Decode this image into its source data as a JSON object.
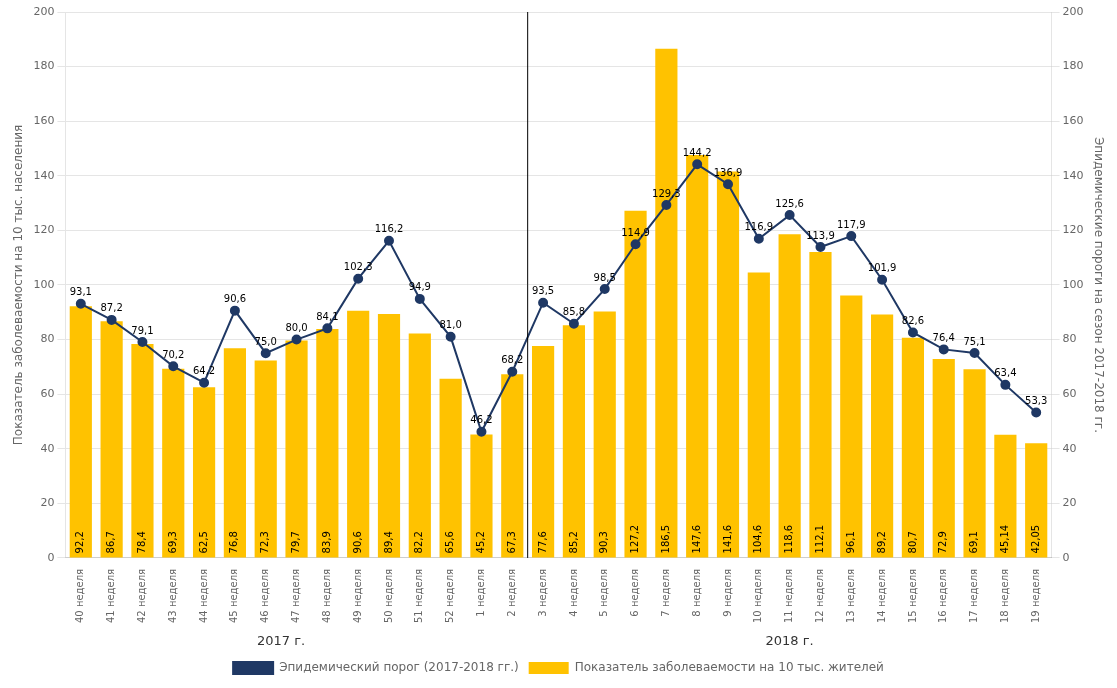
{
  "chart_data": {
    "type": "bar",
    "categories": [
      "40 неделя",
      "41 неделя",
      "42 неделя",
      "43 неделя",
      "44 неделя",
      "45 неделя",
      "46 неделя",
      "47 неделя",
      "48 неделя",
      "49 неделя",
      "50 неделя",
      "51 неделя",
      "52 неделя",
      "1 неделя",
      "2 неделя",
      "3 неделя",
      "4 неделя",
      "5 неделя",
      "6 неделя",
      "7 неделя",
      "8 неделя",
      "9 неделя",
      "10 неделя",
      "11 неделя",
      "12 неделя",
      "13 неделя",
      "14 неделя",
      "15 неделя",
      "16 неделя",
      "17 неделя",
      "18 неделя",
      "19 неделя"
    ],
    "series": [
      {
        "name": "Показатель заболеваемости на 10 тыс. жителей",
        "type": "bar",
        "color": "#FFC200",
        "values": [
          92.2,
          86.7,
          78.4,
          69.3,
          62.5,
          76.8,
          72.3,
          79.7,
          83.9,
          90.6,
          89.4,
          82.2,
          65.6,
          45.2,
          67.3,
          77.6,
          85.2,
          90.3,
          127.2,
          186.5,
          147.6,
          141.6,
          104.6,
          118.6,
          112.1,
          96.1,
          89.2,
          80.7,
          72.9,
          69.1,
          45.14,
          42.05
        ],
        "value_labels": [
          "92,2",
          "86,7",
          "78,4",
          "69,3",
          "62,5",
          "76,8",
          "72,3",
          "79,7",
          "83,9",
          "90,6",
          "89,4",
          "82,2",
          "65,6",
          "45,2",
          "67,3",
          "77,6",
          "85,2",
          "90,3",
          "127,2",
          "186,5",
          "147,6",
          "141,6",
          "104,6",
          "118,6",
          "112,1",
          "96,1",
          "89,2",
          "80,7",
          "72,9",
          "69,1",
          "45,14",
          "42,05"
        ]
      },
      {
        "name": "Эпидемический порог (2017-2018 гг.)",
        "type": "line",
        "color": "#1F3864",
        "marker": "circle",
        "axis": "y2",
        "values": [
          93.1,
          87.2,
          79.1,
          70.2,
          64.2,
          90.6,
          75.0,
          80.0,
          84.1,
          102.3,
          116.2,
          94.9,
          81.0,
          46.2,
          68.2,
          93.5,
          85.8,
          98.5,
          114.9,
          129.3,
          144.2,
          136.9,
          116.9,
          125.6,
          113.9,
          117.9,
          101.9,
          82.6,
          76.4,
          75.1,
          63.4,
          53.3
        ],
        "value_labels": [
          "93,1",
          "87,2",
          "79,1",
          "70,2",
          "64,2",
          "90,6",
          "75,0",
          "80,0",
          "84,1",
          "102,3",
          "116,2",
          "94,9",
          "81,0",
          "46,2",
          "68,2",
          "93,5",
          "85,8",
          "98,5",
          "114,9",
          "129,3",
          "144,2",
          "136,9",
          "116,9",
          "125,6",
          "113,9",
          "117,9",
          "101,9",
          "82,6",
          "76,4",
          "75,1",
          "63,4",
          "53,3"
        ]
      }
    ],
    "ylabel": "Показатель заболеваемости на 10 тыс. населения",
    "y2label": "Эпидемические пороги на сезон 2017-2018 гг.",
    "ylim": [
      0,
      200
    ],
    "yticks": [
      0,
      20,
      40,
      60,
      80,
      100,
      120,
      140,
      160,
      180,
      200
    ],
    "y2lim": [
      0,
      200
    ],
    "y2ticks": [
      0,
      20,
      40,
      60,
      80,
      100,
      120,
      140,
      160,
      180,
      200
    ],
    "grid": true,
    "legend": "bottom",
    "data_labels": true,
    "annotations": [
      {
        "text": "2017 г.",
        "from": "40 неделя",
        "to": "1 неделя"
      },
      {
        "text": "2018 г.",
        "from": "3 неделя",
        "to": "19 неделя"
      },
      {
        "type": "vline",
        "after": "2 неделя"
      }
    ]
  }
}
